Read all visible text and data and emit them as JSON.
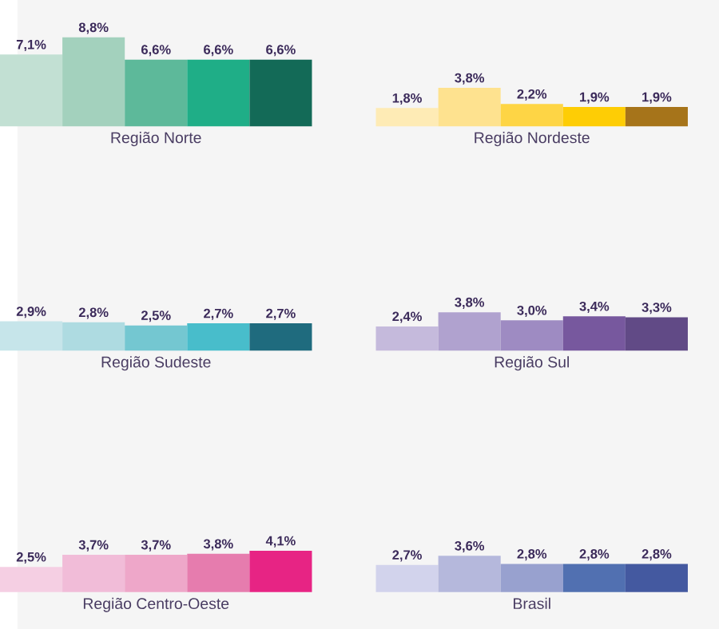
{
  "chart_data": [
    {
      "type": "bar",
      "title": "Região Norte",
      "categories": [
        null,
        null,
        null,
        null,
        null
      ],
      "values": [
        7.1,
        8.8,
        6.6,
        6.6,
        6.6
      ],
      "value_labels": [
        "7,1%",
        "8,8%",
        "6,6%",
        "6,6%",
        "6,6%"
      ],
      "colors": [
        "#c2e0d3",
        "#a3d1bd",
        "#5db99a",
        "#1fae87",
        "#136a57"
      ]
    },
    {
      "type": "bar",
      "title": "Região Nordeste",
      "categories": [
        null,
        null,
        null,
        null,
        null
      ],
      "values": [
        1.8,
        3.8,
        2.2,
        1.9,
        1.9
      ],
      "value_labels": [
        "1,8%",
        "3,8%",
        "2,2%",
        "1,9%",
        "1,9%"
      ],
      "colors": [
        "#feebb5",
        "#fee28f",
        "#fed545",
        "#fecd05",
        "#a6741a"
      ]
    },
    {
      "type": "bar",
      "title": "Região Sudeste",
      "categories": [
        null,
        null,
        null,
        null,
        null
      ],
      "values": [
        2.9,
        2.8,
        2.5,
        2.7,
        2.7
      ],
      "value_labels": [
        "2,9%",
        "2,8%",
        "2,5%",
        "2,7%",
        "2,7%"
      ],
      "colors": [
        "#c6e5ea",
        "#aedbe1",
        "#74c7d1",
        "#48bdcb",
        "#1f6b7e"
      ]
    },
    {
      "type": "bar",
      "title": "Região Sul",
      "categories": [
        null,
        null,
        null,
        null,
        null
      ],
      "values": [
        2.4,
        3.8,
        3.0,
        3.4,
        3.3
      ],
      "value_labels": [
        "2,4%",
        "3,8%",
        "3,0%",
        "3,4%",
        "3,3%"
      ],
      "colors": [
        "#c5badc",
        "#b0a2cf",
        "#9e8bc2",
        "#77589e",
        "#614a86"
      ]
    },
    {
      "type": "bar",
      "title": "Região Centro-Oeste",
      "categories": [
        null,
        null,
        null,
        null,
        null
      ],
      "values": [
        2.5,
        3.7,
        3.7,
        3.8,
        4.1
      ],
      "value_labels": [
        "2,5%",
        "3,7%",
        "3,7%",
        "3,8%",
        "4,1%"
      ],
      "colors": [
        "#f5cfe3",
        "#f1bcd8",
        "#eea7c9",
        "#e67cae",
        "#e72484"
      ]
    },
    {
      "type": "bar",
      "title": "Brasil",
      "categories": [
        null,
        null,
        null,
        null,
        null
      ],
      "values": [
        2.7,
        3.6,
        2.8,
        2.8,
        2.8
      ],
      "value_labels": [
        "2,7%",
        "3,6%",
        "2,8%",
        "2,8%",
        "2,8%"
      ],
      "colors": [
        "#d2d3ec",
        "#b5b8dc",
        "#98a1cf",
        "#5170b1",
        "#4459a0"
      ]
    }
  ]
}
